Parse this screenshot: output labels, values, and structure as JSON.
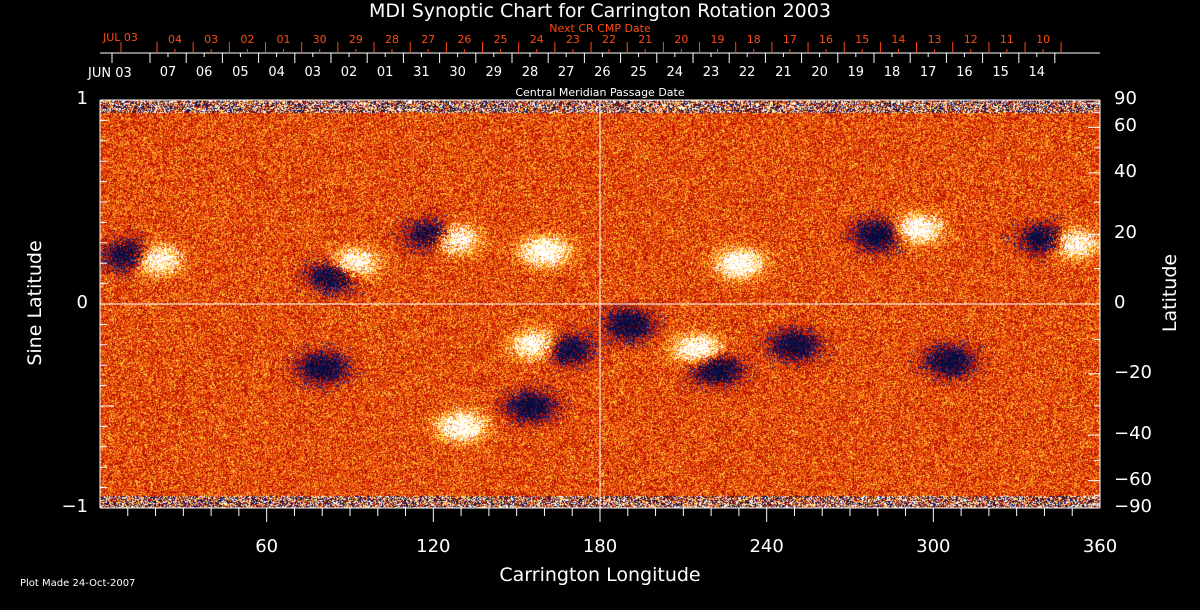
{
  "chart_data": {
    "type": "heatmap",
    "title": "MDI Synoptic Chart for Carrington Rotation 2003",
    "xlabel": "Carrington Longitude",
    "ylabel": "Sine Latitude",
    "y2label": "Latitude",
    "xlim": [
      0,
      360
    ],
    "ylim": [
      -1,
      1
    ],
    "x_ticks": [
      60,
      120,
      180,
      240,
      300,
      360
    ],
    "y_ticks": [
      {
        "v": 1,
        "label": "1"
      },
      {
        "v": 0,
        "label": "0"
      },
      {
        "v": -1,
        "label": "−1"
      }
    ],
    "y2_ticks": [
      90,
      60,
      40,
      20,
      0,
      -20,
      -40,
      -60,
      -90
    ],
    "y2_tick_labels": [
      "90",
      "60",
      "40",
      "20",
      "0",
      "−20",
      "−40",
      "−60",
      "−90"
    ],
    "top_axis_label": "Central Meridian Passage Date",
    "top_axis_start": "JUN 03",
    "top_axis_dates": [
      "07",
      "06",
      "05",
      "04",
      "03",
      "02",
      "01",
      "31",
      "30",
      "29",
      "28",
      "27",
      "26",
      "25",
      "24",
      "23",
      "22",
      "21",
      "20",
      "19",
      "18",
      "17",
      "16",
      "15",
      "14"
    ],
    "next_axis_label": "Next CR CMP Date",
    "next_axis_start": "JUL 03",
    "next_axis_dates": [
      "04",
      "03",
      "02",
      "01",
      "30",
      "29",
      "28",
      "27",
      "26",
      "25",
      "24",
      "23",
      "22",
      "21",
      "20",
      "19",
      "18",
      "17",
      "16",
      "15",
      "14",
      "13",
      "12",
      "11",
      "10"
    ],
    "colorscale": [
      "#0a0a3a",
      "#1a1a70",
      "#b00a00",
      "#e03a08",
      "#ff7a10",
      "#ffd040",
      "#ffffff"
    ],
    "active_regions": [
      {
        "lon": 10,
        "sinlat": 0.24,
        "polarity": "negative"
      },
      {
        "lon": 20,
        "sinlat": 0.22,
        "polarity": "positive"
      },
      {
        "lon": 84,
        "sinlat": 0.14,
        "polarity": "negative"
      },
      {
        "lon": 91,
        "sinlat": 0.2,
        "polarity": "positive"
      },
      {
        "lon": 119,
        "sinlat": 0.34,
        "polarity": "negative"
      },
      {
        "lon": 127,
        "sinlat": 0.32,
        "polarity": "positive"
      },
      {
        "lon": 160,
        "sinlat": 0.26,
        "polarity": "positive"
      },
      {
        "lon": 168,
        "sinlat": -0.22,
        "polarity": "negative"
      },
      {
        "lon": 157,
        "sinlat": -0.2,
        "polarity": "positive"
      },
      {
        "lon": 155,
        "sinlat": -0.5,
        "polarity": "negative"
      },
      {
        "lon": 130,
        "sinlat": -0.6,
        "polarity": "positive"
      },
      {
        "lon": 80,
        "sinlat": -0.31,
        "polarity": "negative"
      },
      {
        "lon": 190,
        "sinlat": -0.1,
        "polarity": "negative"
      },
      {
        "lon": 215,
        "sinlat": -0.22,
        "polarity": "positive"
      },
      {
        "lon": 222,
        "sinlat": -0.32,
        "polarity": "negative"
      },
      {
        "lon": 230,
        "sinlat": 0.2,
        "polarity": "positive"
      },
      {
        "lon": 250,
        "sinlat": -0.2,
        "polarity": "negative"
      },
      {
        "lon": 280,
        "sinlat": 0.34,
        "polarity": "negative"
      },
      {
        "lon": 294,
        "sinlat": 0.37,
        "polarity": "positive"
      },
      {
        "lon": 306,
        "sinlat": -0.28,
        "polarity": "negative"
      },
      {
        "lon": 340,
        "sinlat": 0.32,
        "polarity": "negative"
      },
      {
        "lon": 350,
        "sinlat": 0.3,
        "polarity": "positive"
      }
    ]
  },
  "footer": {
    "plot_made": "Plot Made 24-Oct-2007"
  }
}
